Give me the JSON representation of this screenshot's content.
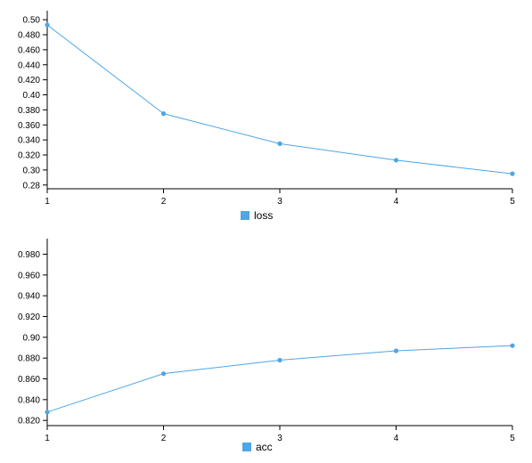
{
  "colors": {
    "series": "#4ea6e6",
    "axis": "#000000"
  },
  "chart_data": [
    {
      "type": "line",
      "x": [
        1,
        2,
        3,
        4,
        5
      ],
      "x_tick_labels": [
        "1",
        "2",
        "3",
        "4",
        "5"
      ],
      "series": [
        {
          "name": "loss",
          "values": [
            0.493,
            0.375,
            0.335,
            0.313,
            0.295
          ]
        }
      ],
      "ylim": [
        0.275,
        0.512
      ],
      "y_ticks": [
        0.28,
        0.3,
        0.32,
        0.34,
        0.36,
        0.38,
        0.4,
        0.42,
        0.44,
        0.46,
        0.48,
        0.5
      ],
      "y_tick_labels": [
        "0.28",
        "0.30",
        "0.320",
        "0.340",
        "0.360",
        "0.380",
        "0.40",
        "0.420",
        "0.440",
        "0.460",
        "0.480",
        "0.50"
      ],
      "grid": false,
      "legend": "bottom-center",
      "title": "",
      "xlabel": "",
      "ylabel": ""
    },
    {
      "type": "line",
      "x": [
        1,
        2,
        3,
        4,
        5
      ],
      "x_tick_labels": [
        "1",
        "2",
        "3",
        "4",
        "5"
      ],
      "series": [
        {
          "name": "acc",
          "values": [
            0.828,
            0.865,
            0.878,
            0.887,
            0.892
          ]
        }
      ],
      "ylim": [
        0.815,
        0.995
      ],
      "y_ticks": [
        0.82,
        0.84,
        0.86,
        0.88,
        0.9,
        0.92,
        0.94,
        0.96,
        0.98
      ],
      "y_tick_labels": [
        "0.820",
        "0.840",
        "0.860",
        "0.880",
        "0.90",
        "0.920",
        "0.940",
        "0.960",
        "0.980"
      ],
      "grid": false,
      "legend": "bottom-center",
      "title": "",
      "xlabel": "",
      "ylabel": ""
    }
  ]
}
